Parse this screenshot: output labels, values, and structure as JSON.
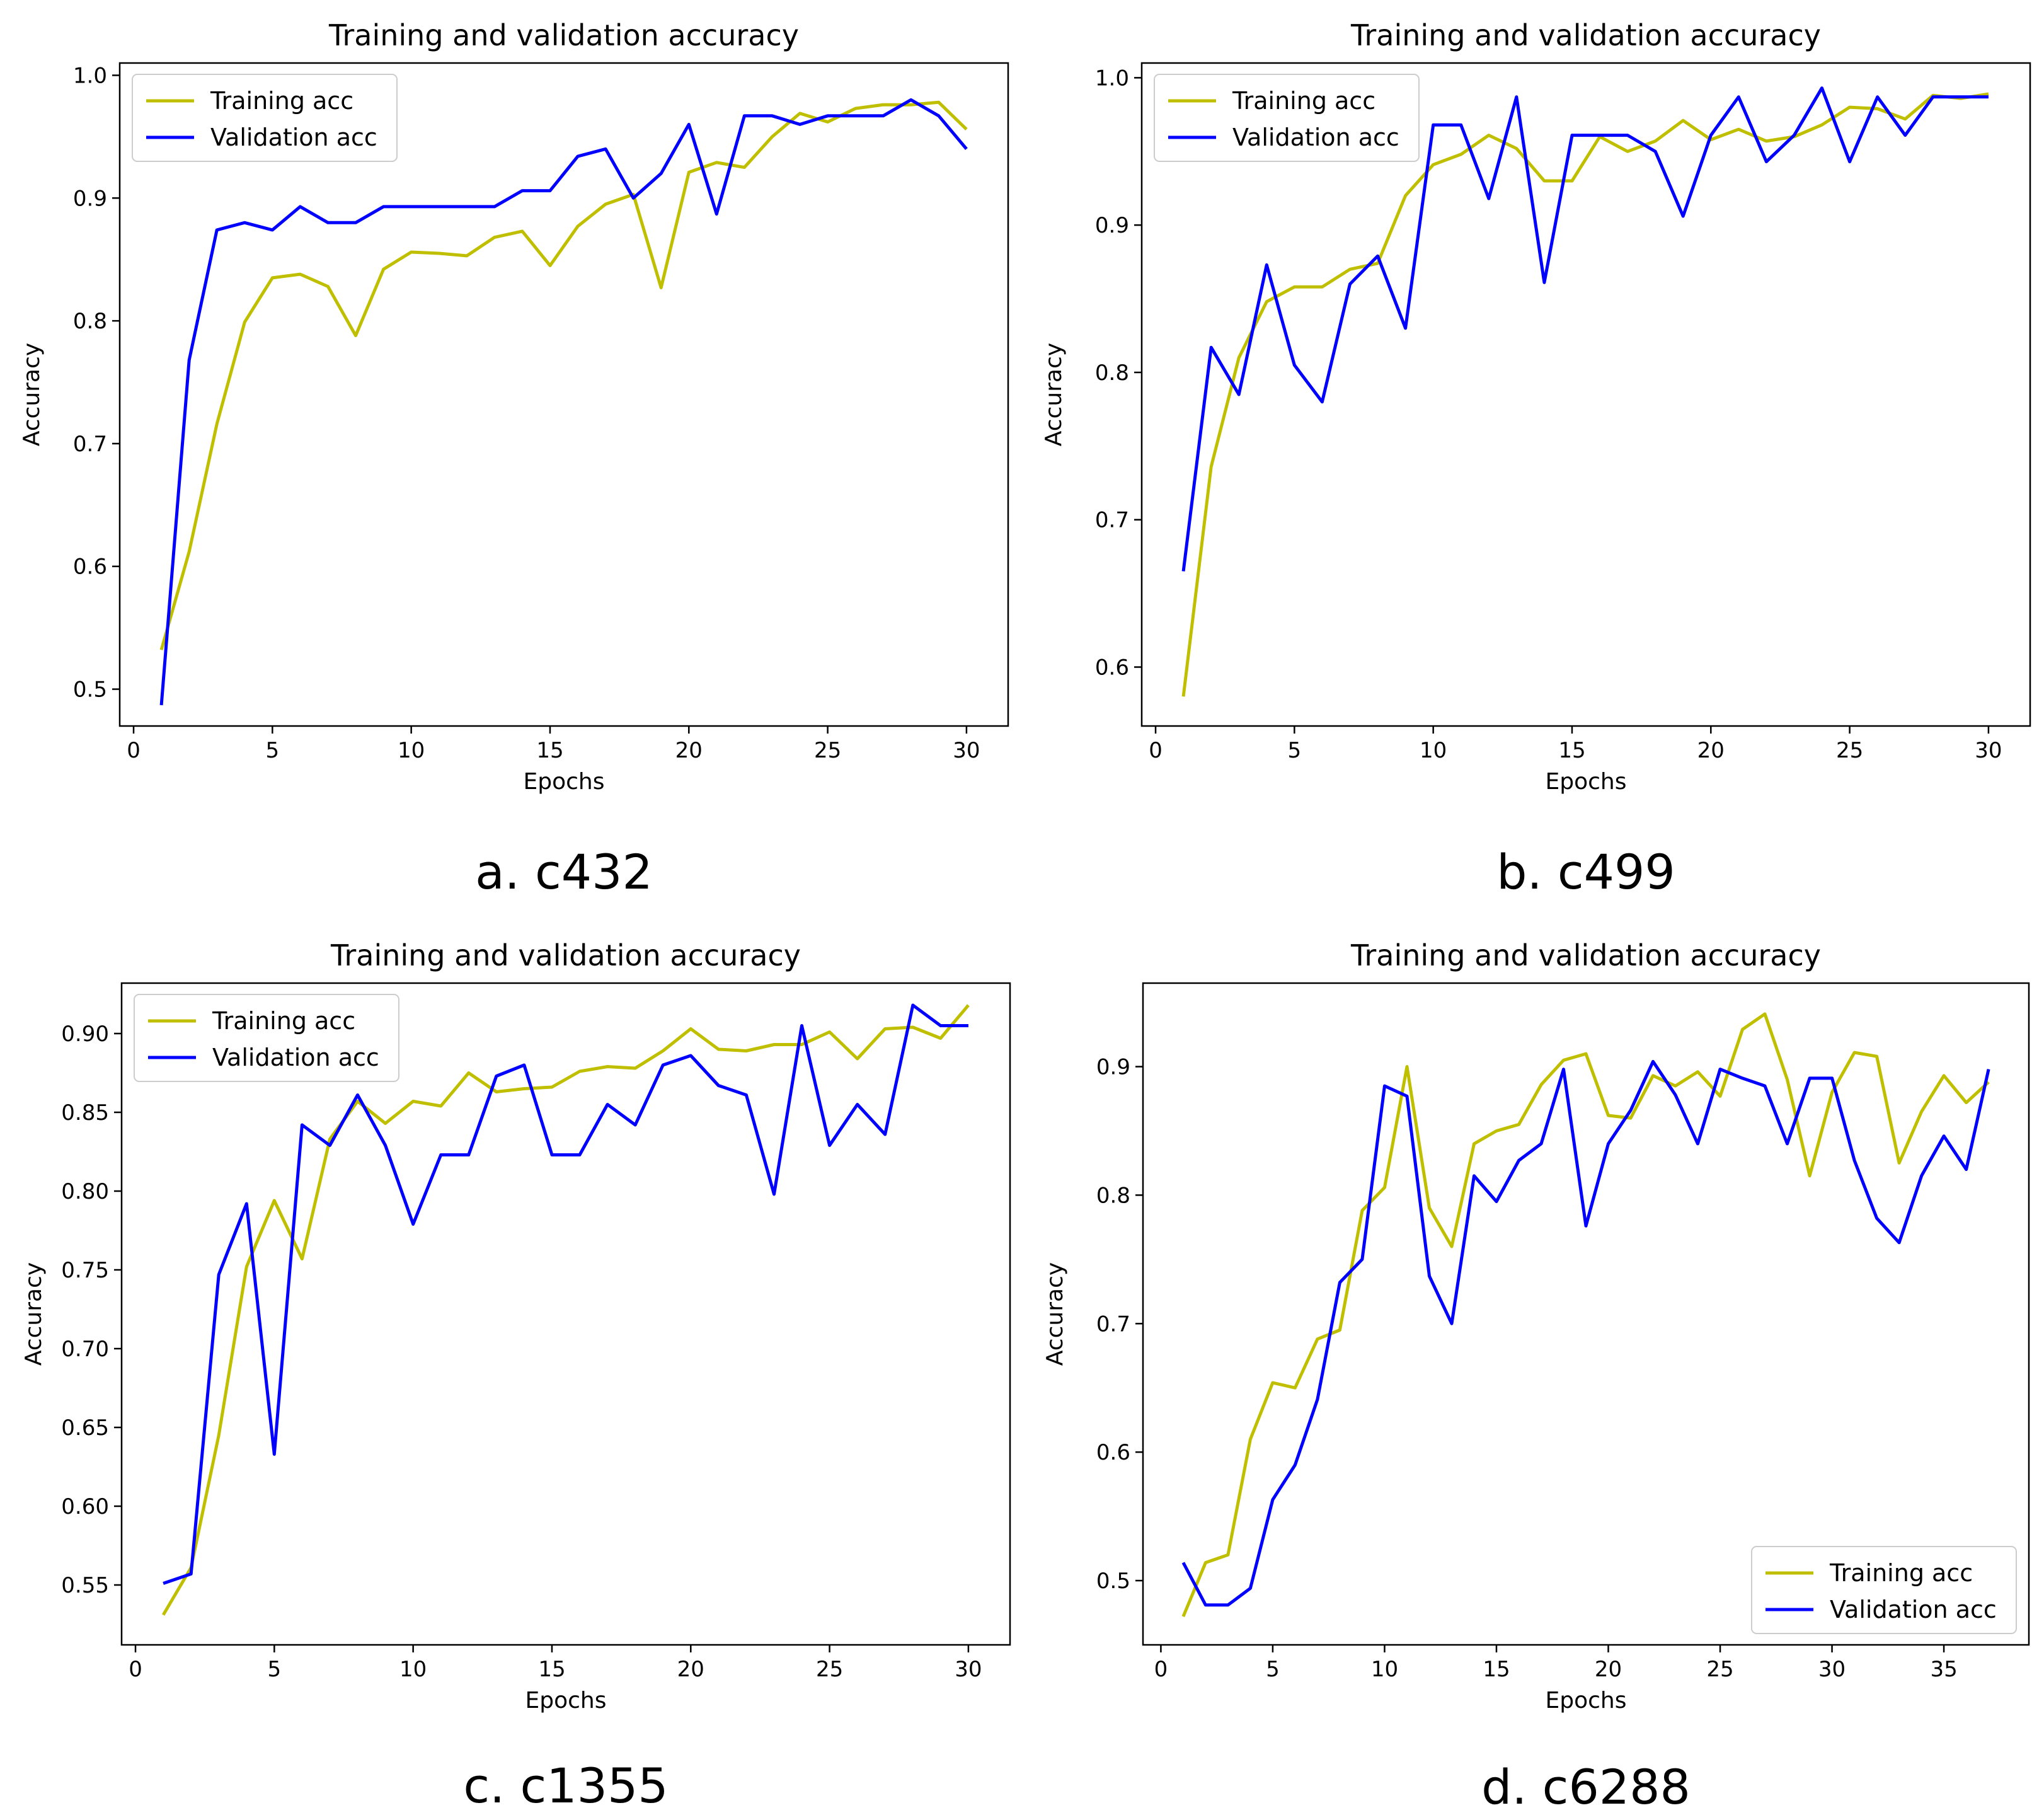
{
  "colors": {
    "training": "#bfbf00",
    "validation": "#0000ff"
  },
  "chart_data": [
    {
      "type": "line",
      "title": "Training and validation accuracy",
      "xlabel": "Epochs",
      "ylabel": "Accuracy",
      "caption": "a. c432",
      "legend_position": "upper-left",
      "xlim": [
        -0.5,
        31.5
      ],
      "ylim": [
        0.47,
        1.01
      ],
      "xticks": [
        0,
        5,
        10,
        15,
        20,
        25,
        30
      ],
      "xtick_labels": [
        "0",
        "5",
        "10",
        "15",
        "20",
        "25",
        "30"
      ],
      "yticks": [
        0.5,
        0.6,
        0.7,
        0.8,
        0.9,
        1.0
      ],
      "ytick_labels": [
        "0.5",
        "0.6",
        "0.7",
        "0.8",
        "0.9",
        "1.0"
      ],
      "x": [
        1,
        2,
        3,
        4,
        5,
        6,
        7,
        8,
        9,
        10,
        11,
        12,
        13,
        14,
        15,
        16,
        17,
        18,
        19,
        20,
        21,
        22,
        23,
        24,
        25,
        26,
        27,
        28,
        29,
        30
      ],
      "series": [
        {
          "name": "Training acc",
          "values": [
            0.532,
            0.612,
            0.716,
            0.799,
            0.835,
            0.838,
            0.828,
            0.788,
            0.842,
            0.856,
            0.855,
            0.853,
            0.868,
            0.873,
            0.845,
            0.877,
            0.895,
            0.903,
            0.827,
            0.921,
            0.929,
            0.925,
            0.95,
            0.969,
            0.962,
            0.973,
            0.976,
            0.976,
            0.978,
            0.956
          ]
        },
        {
          "name": "Validation acc",
          "values": [
            0.487,
            0.768,
            0.874,
            0.88,
            0.874,
            0.893,
            0.88,
            0.88,
            0.893,
            0.893,
            0.893,
            0.893,
            0.893,
            0.906,
            0.906,
            0.934,
            0.94,
            0.9,
            0.92,
            0.96,
            0.887,
            0.967,
            0.967,
            0.96,
            0.967,
            0.967,
            0.967,
            0.98,
            0.967,
            0.94
          ]
        }
      ]
    },
    {
      "type": "line",
      "title": "Training and validation accuracy",
      "xlabel": "Epochs",
      "ylabel": "Accuracy",
      "caption": "b. c499",
      "legend_position": "upper-left",
      "xlim": [
        -0.5,
        31.5
      ],
      "ylim": [
        0.56,
        1.01
      ],
      "xticks": [
        0,
        5,
        10,
        15,
        20,
        25,
        30
      ],
      "xtick_labels": [
        "0",
        "5",
        "10",
        "15",
        "20",
        "25",
        "30"
      ],
      "yticks": [
        0.6,
        0.7,
        0.8,
        0.9,
        1.0
      ],
      "ytick_labels": [
        "0.6",
        "0.7",
        "0.8",
        "0.9",
        "1.0"
      ],
      "x": [
        1,
        2,
        3,
        4,
        5,
        6,
        7,
        8,
        9,
        10,
        11,
        12,
        13,
        14,
        15,
        16,
        17,
        18,
        19,
        20,
        21,
        22,
        23,
        24,
        25,
        26,
        27,
        28,
        29,
        30
      ],
      "series": [
        {
          "name": "Training acc",
          "values": [
            0.58,
            0.736,
            0.81,
            0.848,
            0.858,
            0.858,
            0.87,
            0.874,
            0.92,
            0.941,
            0.948,
            0.961,
            0.952,
            0.93,
            0.93,
            0.96,
            0.95,
            0.957,
            0.971,
            0.958,
            0.965,
            0.957,
            0.96,
            0.968,
            0.98,
            0.979,
            0.972,
            0.988,
            0.986,
            0.989
          ]
        },
        {
          "name": "Validation acc",
          "values": [
            0.665,
            0.817,
            0.785,
            0.873,
            0.805,
            0.78,
            0.86,
            0.879,
            0.83,
            0.968,
            0.968,
            0.918,
            0.987,
            0.861,
            0.961,
            0.961,
            0.961,
            0.95,
            0.906,
            0.961,
            0.987,
            0.943,
            0.961,
            0.993,
            0.943,
            0.987,
            0.961,
            0.987,
            0.987,
            0.987
          ]
        }
      ]
    },
    {
      "type": "line",
      "title": "Training and validation accuracy",
      "xlabel": "Epochs",
      "ylabel": "Accuracy",
      "caption": "c. c1355",
      "legend_position": "upper-left",
      "xlim": [
        -0.5,
        31.5
      ],
      "ylim": [
        0.512,
        0.932
      ],
      "xticks": [
        0,
        5,
        10,
        15,
        20,
        25,
        30
      ],
      "xtick_labels": [
        "0",
        "5",
        "10",
        "15",
        "20",
        "25",
        "30"
      ],
      "yticks": [
        0.55,
        0.6,
        0.65,
        0.7,
        0.75,
        0.8,
        0.85,
        0.9
      ],
      "ytick_labels": [
        "0.55",
        "0.60",
        "0.65",
        "0.70",
        "0.75",
        "0.80",
        "0.85",
        "0.90"
      ],
      "x": [
        1,
        2,
        3,
        4,
        5,
        6,
        7,
        8,
        9,
        10,
        11,
        12,
        13,
        14,
        15,
        16,
        17,
        18,
        19,
        20,
        21,
        22,
        23,
        24,
        25,
        26,
        27,
        28,
        29,
        30
      ],
      "series": [
        {
          "name": "Training acc",
          "values": [
            0.531,
            0.561,
            0.645,
            0.752,
            0.794,
            0.757,
            0.833,
            0.857,
            0.843,
            0.857,
            0.854,
            0.875,
            0.863,
            0.865,
            0.866,
            0.876,
            0.879,
            0.878,
            0.889,
            0.903,
            0.89,
            0.889,
            0.893,
            0.893,
            0.901,
            0.884,
            0.903,
            0.904,
            0.897,
            0.918
          ]
        },
        {
          "name": "Validation acc",
          "values": [
            0.551,
            0.557,
            0.747,
            0.792,
            0.633,
            0.842,
            0.829,
            0.861,
            0.829,
            0.779,
            0.823,
            0.823,
            0.873,
            0.88,
            0.823,
            0.823,
            0.855,
            0.842,
            0.88,
            0.886,
            0.867,
            0.861,
            0.798,
            0.905,
            0.829,
            0.855,
            0.836,
            0.918,
            0.905,
            0.905
          ]
        }
      ]
    },
    {
      "type": "line",
      "title": "Training and validation accuracy",
      "xlabel": "Epochs",
      "ylabel": "Accuracy",
      "caption": "d. c6288",
      "legend_position": "lower-right",
      "xlim": [
        -0.8,
        38.8
      ],
      "ylim": [
        0.45,
        0.965
      ],
      "xticks": [
        0,
        5,
        10,
        15,
        20,
        25,
        30,
        35
      ],
      "xtick_labels": [
        "0",
        "5",
        "10",
        "15",
        "20",
        "25",
        "30",
        "35"
      ],
      "yticks": [
        0.5,
        0.6,
        0.7,
        0.8,
        0.9
      ],
      "ytick_labels": [
        "0.5",
        "0.6",
        "0.7",
        "0.8",
        "0.9"
      ],
      "x": [
        1,
        2,
        3,
        4,
        5,
        6,
        7,
        8,
        9,
        10,
        11,
        12,
        13,
        14,
        15,
        16,
        17,
        18,
        19,
        20,
        21,
        22,
        23,
        24,
        25,
        26,
        27,
        28,
        29,
        30,
        31,
        32,
        33,
        34,
        35,
        36,
        37
      ],
      "series": [
        {
          "name": "Training acc",
          "values": [
            0.472,
            0.514,
            0.52,
            0.61,
            0.654,
            0.65,
            0.688,
            0.695,
            0.788,
            0.806,
            0.9,
            0.79,
            0.76,
            0.84,
            0.85,
            0.855,
            0.886,
            0.905,
            0.91,
            0.862,
            0.86,
            0.893,
            0.885,
            0.896,
            0.877,
            0.929,
            0.941,
            0.89,
            0.815,
            0.88,
            0.911,
            0.908,
            0.825,
            0.865,
            0.893,
            0.872,
            0.888
          ]
        },
        {
          "name": "Validation acc",
          "values": [
            0.514,
            0.481,
            0.481,
            0.494,
            0.563,
            0.59,
            0.641,
            0.732,
            0.75,
            0.885,
            0.877,
            0.737,
            0.7,
            0.815,
            0.795,
            0.827,
            0.84,
            0.898,
            0.776,
            0.84,
            0.866,
            0.904,
            0.878,
            0.84,
            0.898,
            0.891,
            0.885,
            0.84,
            0.891,
            0.891,
            0.827,
            0.782,
            0.763,
            0.815,
            0.846,
            0.82,
            0.898
          ]
        }
      ]
    }
  ]
}
